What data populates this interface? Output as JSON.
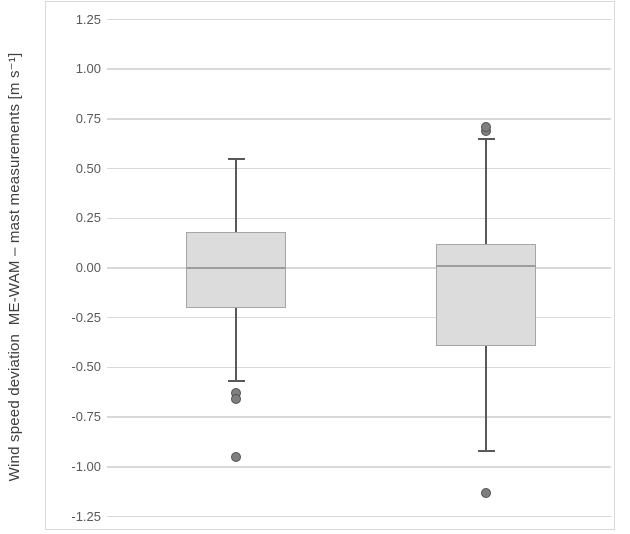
{
  "figure": {
    "y_axis_title": "Wind speed deviation  ME-WAM – mast measurements [m s⁻¹]"
  },
  "chart_data": {
    "type": "boxplot",
    "title": "",
    "xlabel": "",
    "ylabel": "Wind speed deviation ME-WAM – mast measurements [m s-1]",
    "ylabel_display": "Wind speed deviation  ME-WAM – mast measurements [m s⁻¹]",
    "ylim": [
      -1.25,
      1.25
    ],
    "ytick_step": 0.25,
    "ytick_labels": [
      "1.25",
      "1.00",
      "0.75",
      "0.50",
      "0.25",
      "0.00",
      "-0.25",
      "-0.50",
      "-0.75",
      "-1.00",
      "-1.25"
    ],
    "grid": true,
    "legend": false,
    "categories": [
      "",
      ""
    ],
    "series": [
      {
        "whisker_high": 0.55,
        "q3": 0.18,
        "median": 0.0,
        "q1": -0.2,
        "whisker_low": -0.57,
        "outliers_high": [],
        "outliers_low": [
          -0.63,
          -0.66,
          -0.95
        ]
      },
      {
        "whisker_high": 0.65,
        "q3": 0.12,
        "median": 0.01,
        "q1": -0.39,
        "whisker_low": -0.92,
        "outliers_high": [
          0.69,
          0.71
        ],
        "outliers_low": [
          -1.13
        ]
      }
    ],
    "colors": {
      "box_fill": "#dcdcdc",
      "box_border": "#a6a6a6",
      "median_line": "#9d9d9d",
      "whisker": "#595959",
      "outlier_fill": "#7f7f7f",
      "outlier_border": "#525252",
      "gridline": "#d9d9d9",
      "plot_border": "#d9d9d9",
      "tick_text": "#595959",
      "axis_title_text": "#404040"
    }
  }
}
